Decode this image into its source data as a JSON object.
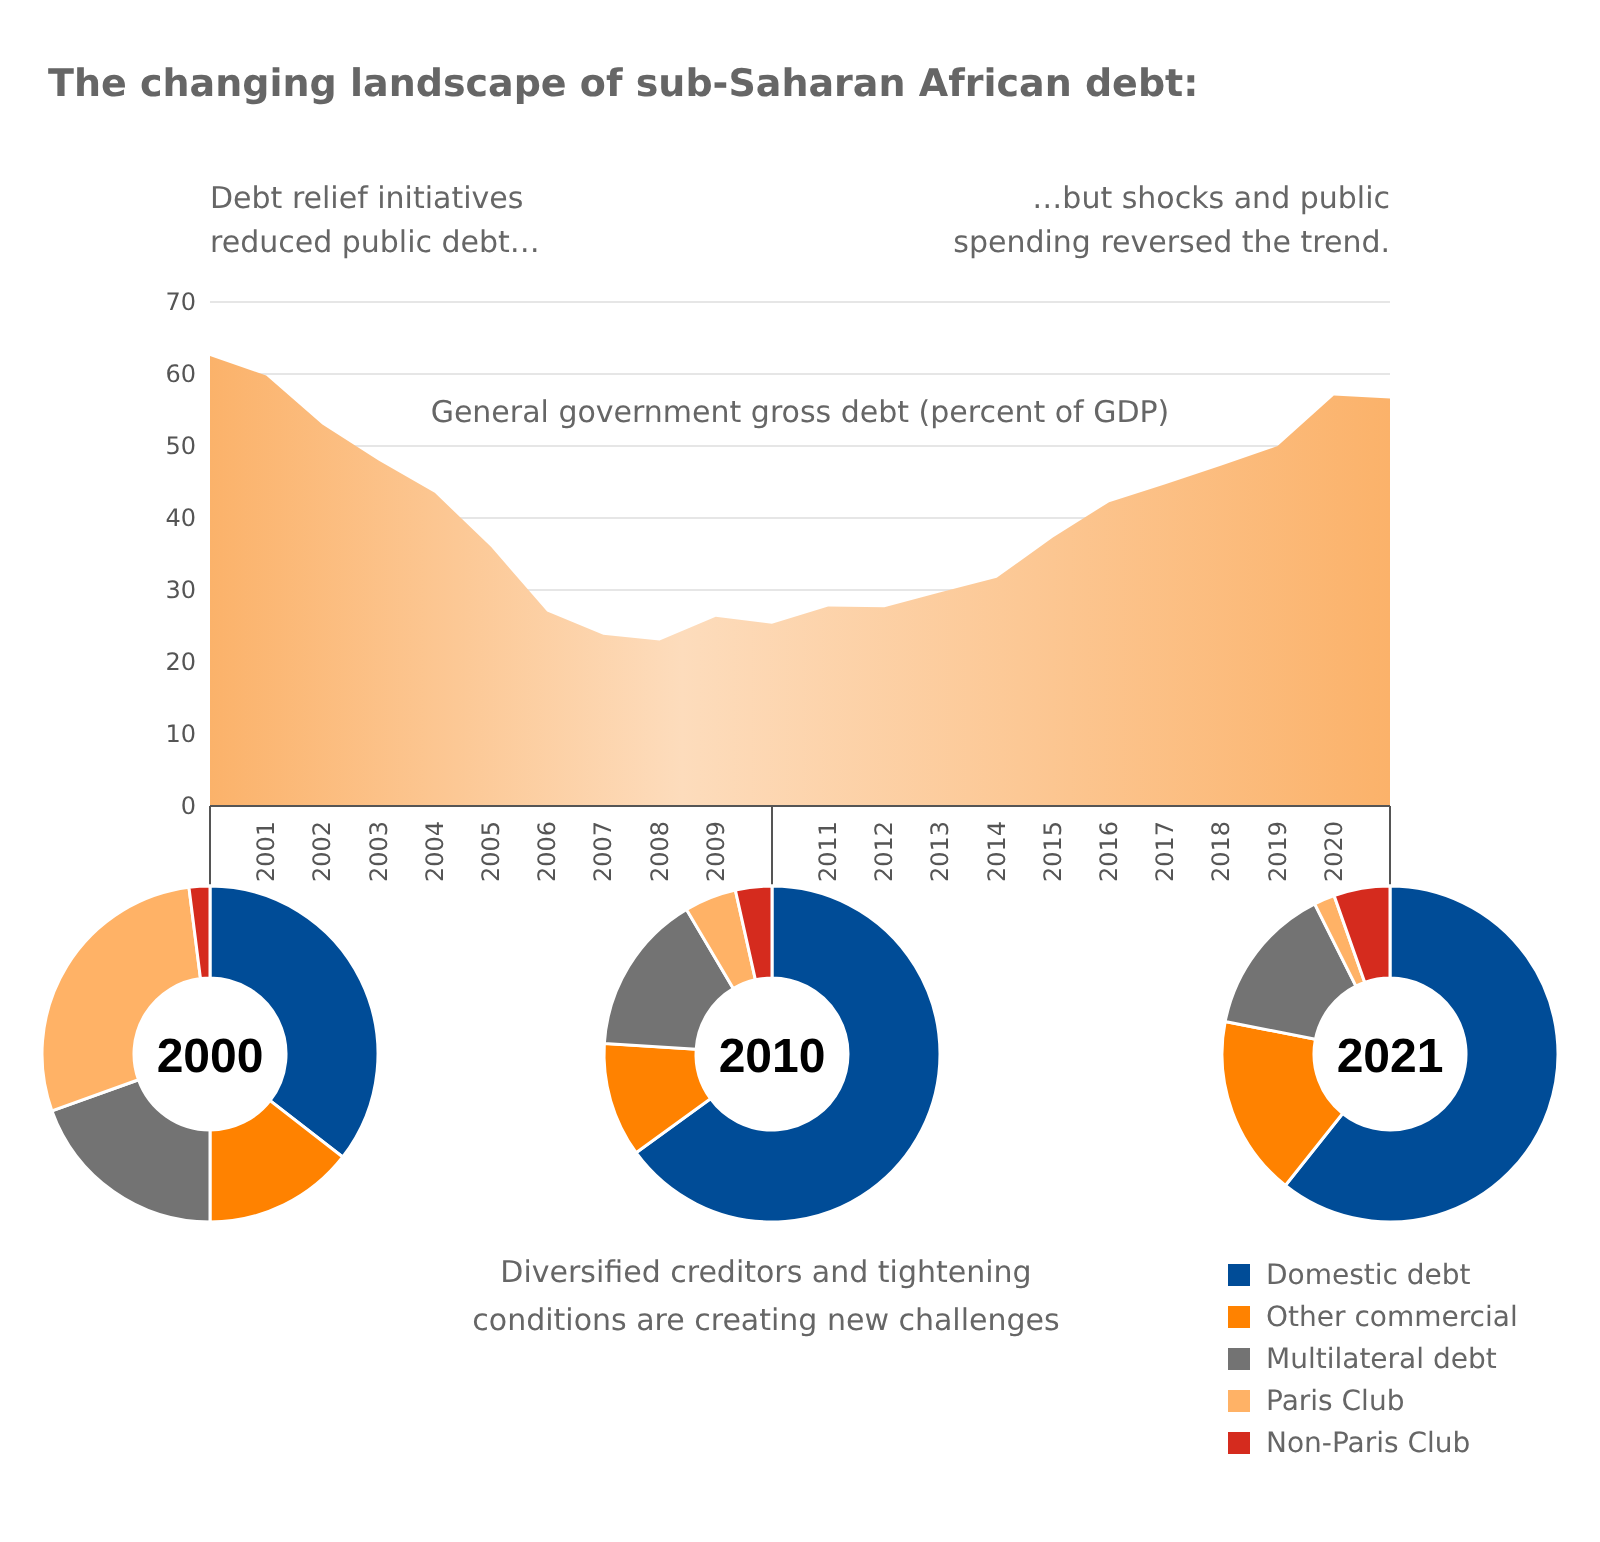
{
  "chart_data": [
    {
      "type": "area",
      "title": "The changing landscape of sub-Saharan African debt:",
      "categories": [
        null,
        "2001",
        "2002",
        "2003",
        "2004",
        "2005",
        "2006",
        "2007",
        "2008",
        "2009",
        null,
        "2011",
        "2012",
        "2013",
        "2014",
        "2015",
        "2016",
        "2017",
        "2018",
        "2019",
        "2020",
        null
      ],
      "values": [
        62.5,
        59.8,
        53,
        48,
        43.5,
        36,
        27,
        23.8,
        23,
        26.3,
        25.3,
        27.7,
        27.6,
        29.7,
        31.7,
        37.3,
        42.2,
        44.7,
        47.3,
        50,
        57,
        56.6
      ],
      "color": "#fbb26a",
      "ylim": [
        0,
        70
      ],
      "yticks": [
        0,
        10,
        20,
        30,
        40,
        50,
        60,
        70
      ],
      "grid": "y",
      "annotations": [
        "Debt relief initiatives\nreduced public debt…",
        "…but shocks and public\nspending reversed the trend.",
        "General government gross debt (percent of GDP)"
      ]
    },
    {
      "type": "donut",
      "title": "2000",
      "categories": [
        null,
        null,
        null,
        null,
        null
      ],
      "values": [
        35.5,
        14.5,
        19.5,
        28.5,
        2
      ],
      "colors": [
        "#004c97",
        "#ff8200",
        "#737373",
        "#ffb266",
        "#d52b1e"
      ]
    },
    {
      "type": "donut",
      "title": "2010",
      "categories": [
        null,
        null,
        null,
        null,
        null
      ],
      "values": [
        65,
        11,
        15.5,
        5,
        3.5
      ],
      "colors": [
        "#004c97",
        "#ff8200",
        "#737373",
        "#ffb266",
        "#d52b1e"
      ],
      "annotations": [
        "Diversified creditors and tightening\nconditions are creating new challenges"
      ]
    },
    {
      "type": "donut",
      "title": "2021",
      "categories": [
        "Domestic debt",
        "Other commercial",
        "Multilateral debt",
        "Paris Club",
        "Non-Paris Club"
      ],
      "values": [
        60.7,
        17.4,
        14.5,
        2,
        5.4
      ],
      "colors": [
        "#004c97",
        "#ff8200",
        "#737373",
        "#ffb266",
        "#d52b1e"
      ],
      "legend": "bottom left"
    }
  ]
}
